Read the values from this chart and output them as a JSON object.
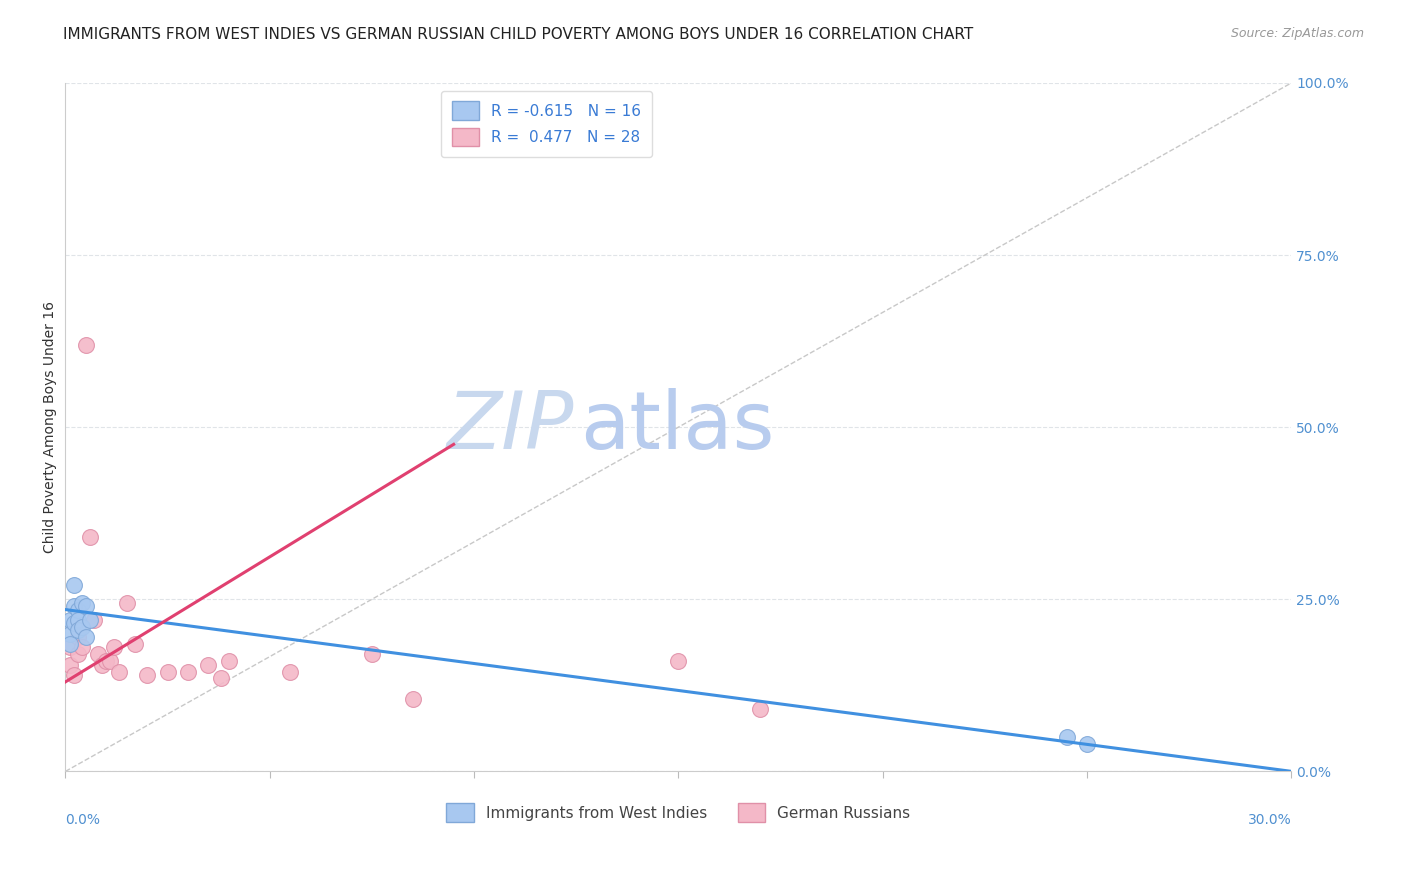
{
  "title": "IMMIGRANTS FROM WEST INDIES VS GERMAN RUSSIAN CHILD POVERTY AMONG BOYS UNDER 16 CORRELATION CHART",
  "source": "Source: ZipAtlas.com",
  "ylabel": "Child Poverty Among Boys Under 16",
  "right_yticks": [
    0.0,
    0.25,
    0.5,
    0.75,
    1.0
  ],
  "right_yticklabels": [
    "0.0%",
    "25.0%",
    "50.0%",
    "75.0%",
    "100.0%"
  ],
  "watermark_zip": "ZIP",
  "watermark_atlas": "atlas",
  "legend_line1": "R = -0.615   N = 16",
  "legend_line2": "R =  0.477   N = 28",
  "legend_label1": "Immigrants from West Indies",
  "legend_label2": "German Russians",
  "blue_scatter_color": "#a8c8f0",
  "blue_edge_color": "#80a8d8",
  "pink_scatter_color": "#f4b8c8",
  "pink_edge_color": "#e090a8",
  "blue_line_color": "#4090e0",
  "pink_line_color": "#e04070",
  "ref_line_color": "#c8c8c8",
  "xlim": [
    0.0,
    0.3
  ],
  "ylim": [
    0.0,
    1.0
  ],
  "blue_scatter_x": [
    0.001,
    0.001,
    0.001,
    0.002,
    0.002,
    0.002,
    0.003,
    0.003,
    0.003,
    0.004,
    0.004,
    0.005,
    0.005,
    0.006,
    0.245,
    0.25
  ],
  "blue_scatter_y": [
    0.22,
    0.2,
    0.185,
    0.27,
    0.24,
    0.215,
    0.235,
    0.22,
    0.205,
    0.245,
    0.21,
    0.24,
    0.195,
    0.22,
    0.05,
    0.04
  ],
  "pink_scatter_x": [
    0.001,
    0.001,
    0.002,
    0.003,
    0.003,
    0.004,
    0.005,
    0.006,
    0.007,
    0.008,
    0.009,
    0.01,
    0.011,
    0.012,
    0.013,
    0.015,
    0.017,
    0.02,
    0.025,
    0.03,
    0.035,
    0.038,
    0.04,
    0.055,
    0.075,
    0.085,
    0.15,
    0.17
  ],
  "pink_scatter_y": [
    0.18,
    0.155,
    0.14,
    0.195,
    0.17,
    0.18,
    0.62,
    0.34,
    0.22,
    0.17,
    0.155,
    0.16,
    0.16,
    0.18,
    0.145,
    0.245,
    0.185,
    0.14,
    0.145,
    0.145,
    0.155,
    0.135,
    0.16,
    0.145,
    0.17,
    0.105,
    0.16,
    0.09
  ],
  "blue_trend_x": [
    0.0,
    0.3
  ],
  "blue_trend_y": [
    0.235,
    0.0
  ],
  "pink_trend_x": [
    0.0,
    0.095
  ],
  "pink_trend_y": [
    0.13,
    0.475
  ],
  "ref_line_x": [
    0.0,
    0.3
  ],
  "ref_line_y": [
    0.0,
    1.0
  ],
  "title_fontsize": 11,
  "source_fontsize": 9,
  "axis_label_fontsize": 10,
  "tick_fontsize": 10,
  "legend_fontsize": 11,
  "dot_size": 130,
  "watermark_zip_color": "#c8d8ee",
  "watermark_atlas_color": "#b8ccee",
  "watermark_fontsize": 58,
  "grid_color": "#e0e4e8",
  "grid_style": "--"
}
